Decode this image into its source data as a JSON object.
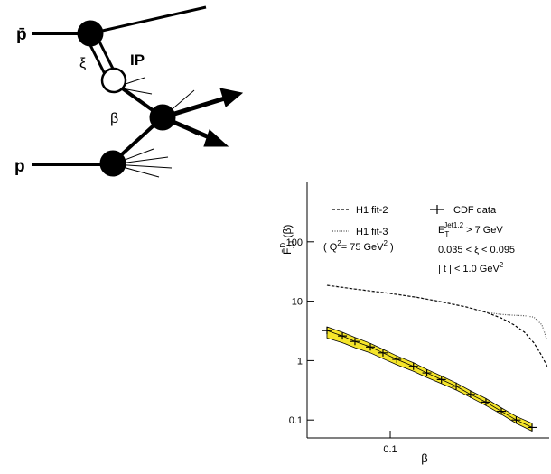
{
  "diagram": {
    "labels": {
      "pbar": "p̄",
      "xi": "ξ",
      "pomeron": "IP",
      "beta": "β",
      "p": "p"
    }
  },
  "chart_data": {
    "type": "line",
    "log_x": true,
    "log_y": true,
    "xlabel": "β",
    "ylabel": [
      "F̄",
      "D",
      "JJ",
      " (β)"
    ],
    "xlim": [
      0.03,
      1
    ],
    "ylim": [
      0.05,
      1000
    ],
    "xticks": [
      0.1
    ],
    "yticks": [
      0.1,
      1,
      10,
      100
    ],
    "annotations": {
      "q2": [
        "( Q",
        "2",
        "= 75 GeV",
        "2",
        " )"
      ],
      "et": [
        "E",
        "T",
        "Jet1,2",
        " > 7 GeV"
      ],
      "xi": "0.035 < ξ < 0.095",
      "t": [
        "| t | < 1.0 GeV",
        "2"
      ]
    },
    "series": [
      {
        "name": "H1 fit-2",
        "color": "#000",
        "style": "dashed",
        "x": [
          0.04,
          0.06,
          0.1,
          0.15,
          0.2,
          0.3,
          0.4,
          0.5,
          0.6,
          0.7,
          0.8,
          0.9,
          0.97
        ],
        "values": [
          18.5,
          16,
          13.5,
          11.5,
          10,
          8,
          6.5,
          5.2,
          4,
          3,
          2,
          1.2,
          0.8
        ]
      },
      {
        "name": "H1 fit-3",
        "color": "#555",
        "style": "dotted",
        "x": [
          0.04,
          0.06,
          0.1,
          0.15,
          0.2,
          0.3,
          0.4,
          0.5,
          0.6,
          0.7,
          0.8,
          0.9,
          0.97
        ],
        "values": [
          18.5,
          16,
          13.5,
          11.5,
          10,
          8,
          6.5,
          6,
          5.8,
          5.7,
          5.4,
          4,
          2.2
        ]
      },
      {
        "name": "CDF data",
        "color": "#000",
        "style": "points",
        "band_color": "#f5e52a",
        "x": [
          0.04,
          0.05,
          0.06,
          0.075,
          0.09,
          0.11,
          0.14,
          0.17,
          0.21,
          0.26,
          0.32,
          0.4,
          0.5,
          0.62,
          0.78
        ],
        "values": [
          3.2,
          2.6,
          2.1,
          1.7,
          1.35,
          1.05,
          0.8,
          0.62,
          0.48,
          0.37,
          0.27,
          0.2,
          0.14,
          0.1,
          0.075
        ],
        "band_upper": [
          3.7,
          3.0,
          2.45,
          1.95,
          1.55,
          1.2,
          0.92,
          0.71,
          0.55,
          0.42,
          0.31,
          0.23,
          0.16,
          0.115,
          0.088
        ],
        "band_lower": [
          2.4,
          2.0,
          1.65,
          1.35,
          1.08,
          0.85,
          0.66,
          0.52,
          0.41,
          0.32,
          0.24,
          0.175,
          0.125,
          0.088,
          0.065
        ]
      }
    ]
  }
}
